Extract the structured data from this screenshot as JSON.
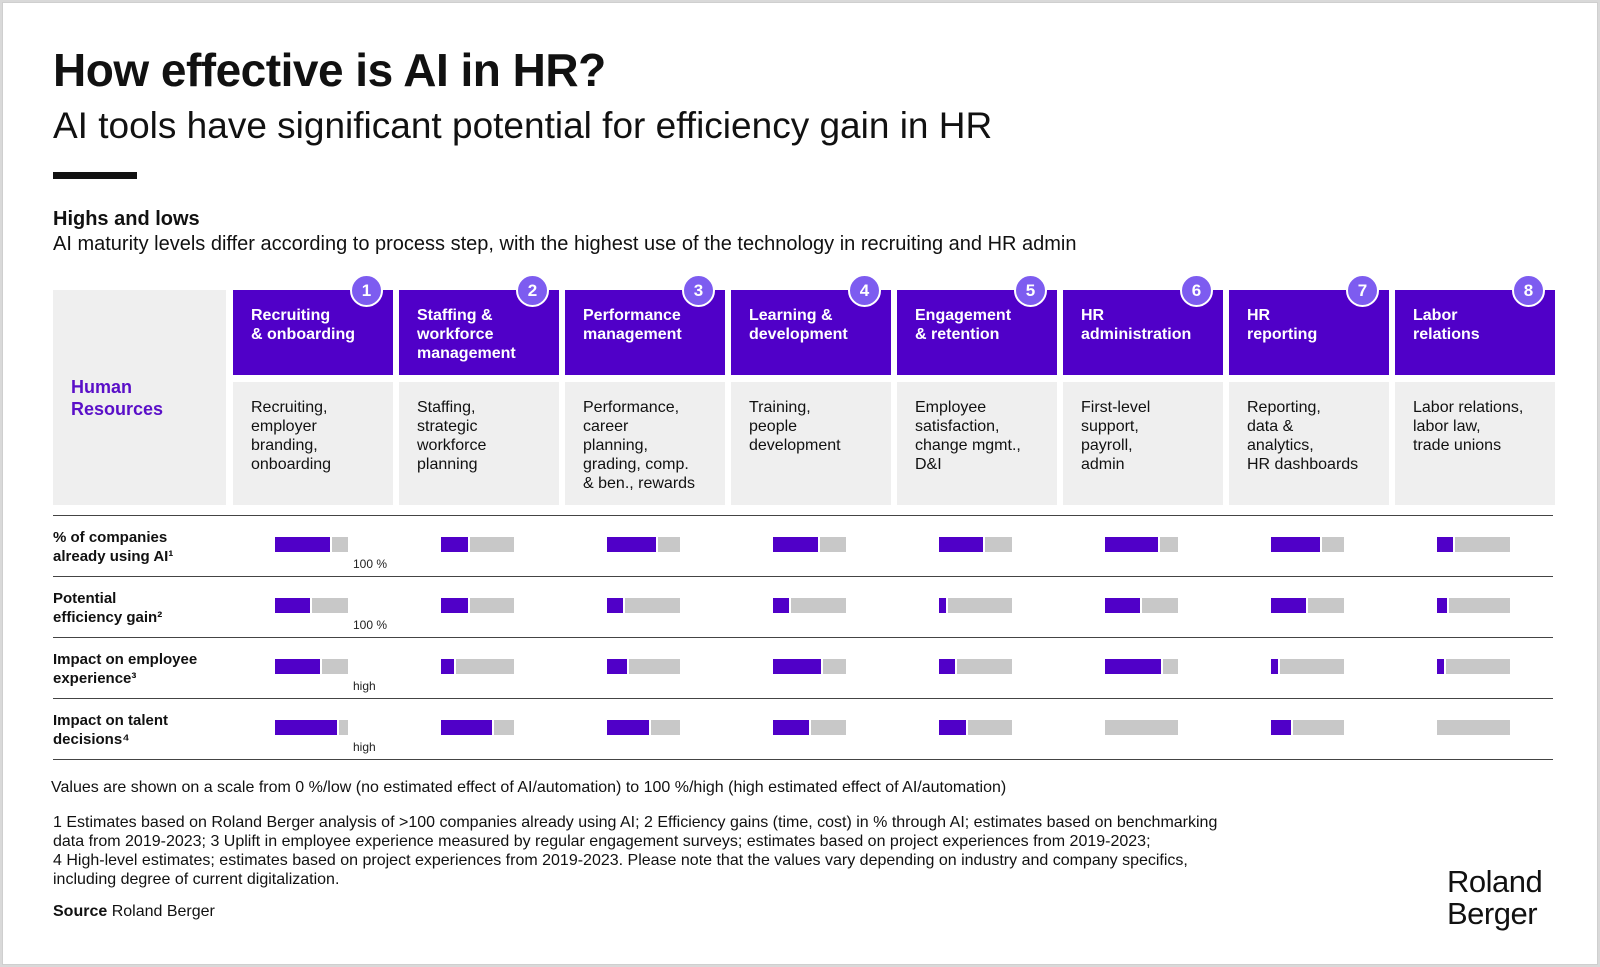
{
  "title": "How effective is AI in HR?",
  "subtitle": "AI tools have significant potential for efficiency gain in HR",
  "section_heading": "Highs and lows",
  "section_subheading": "AI maturity levels differ according to process step, with the highest use of the technology in recruiting and HR admin",
  "row_group_label": "Human\nResources",
  "colors": {
    "accent": "#5000c8",
    "badge": "#7d5cf0",
    "track": "#c8c8c8",
    "panel": "#efefef"
  },
  "chart_data": {
    "type": "table",
    "scale": "0%/low to 100%/high",
    "categories": [
      {
        "number": "1",
        "label": "Recruiting\n& onboarding",
        "description": "Recruiting,\nemployer\nbranding,\nonboarding"
      },
      {
        "number": "2",
        "label": "Staffing &\nworkforce\nmanagement",
        "description": "Staffing,\nstrategic\nworkforce\nplanning"
      },
      {
        "number": "3",
        "label": "Performance\nmanagement",
        "description": "Performance,\ncareer\nplanning,\ngrading, comp.\n& ben., rewards"
      },
      {
        "number": "4",
        "label": "Learning &\ndevelopment",
        "description": "Training,\npeople\ndevelopment"
      },
      {
        "number": "5",
        "label": "Engagement\n& retention",
        "description": "Employee\nsatisfaction,\nchange mgmt.,\nD&I"
      },
      {
        "number": "6",
        "label": "HR\nadministration",
        "description": "First-level\nsupport,\npayroll,\nadmin"
      },
      {
        "number": "7",
        "label": "HR\nreporting",
        "description": "Reporting,\ndata &\nanalytics,\nHR dashboards"
      },
      {
        "number": "8",
        "label": "Labor\nrelations",
        "description": "Labor relations,\nlabor law,\ntrade unions"
      }
    ],
    "series": [
      {
        "name": "% of companies\nalready using AI¹",
        "scale_label": "100 %",
        "values": [
          0.78,
          0.4,
          0.7,
          0.65,
          0.63,
          0.76,
          0.7,
          0.25
        ]
      },
      {
        "name": "Potential\nefficiency gain²",
        "scale_label": "100 %",
        "values": [
          0.5,
          0.4,
          0.25,
          0.25,
          0.12,
          0.5,
          0.5,
          0.16
        ]
      },
      {
        "name": "Impact on employee\nexperience³",
        "scale_label": "high",
        "values": [
          0.65,
          0.2,
          0.3,
          0.68,
          0.25,
          0.79,
          0.12,
          0.12
        ]
      },
      {
        "name": "Impact on talent\ndecisions⁴",
        "scale_label": "high",
        "values": [
          0.88,
          0.73,
          0.6,
          0.52,
          0.4,
          0.0,
          0.3,
          0.0
        ]
      }
    ]
  },
  "scale_note": "Values are shown on a scale from 0 %/low (no estimated effect of AI/automation) to 100 %/high (high estimated effect of AI/automation)",
  "footnotes": [
    "1  Estimates based on Roland Berger analysis of >100 companies already using AI; 2  Efficiency gains (time, cost) in % through AI; estimates based on benchmarking",
    "data from 2019-2023; 3  Uplift in employee experience measured by regular engagement surveys; estimates based on project experiences from 2019-2023;",
    "4  High-level estimates; estimates based on project experiences from 2019-2023. Please note that the values vary depending on industry and company specifics,",
    "including degree of current digitalization."
  ],
  "source": {
    "label": "Source",
    "value": "Roland Berger"
  },
  "logo_text": "Roland\nBerger"
}
